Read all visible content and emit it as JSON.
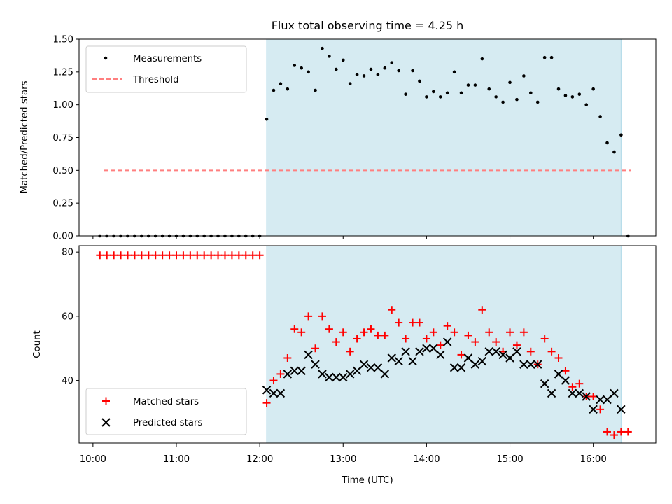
{
  "chart_data": {
    "type": "scatter",
    "title": "Flux total observing time = 4.25 h",
    "xlabel": "Time (UTC)",
    "x_ticks": [
      "10:00",
      "11:00",
      "12:00",
      "13:00",
      "14:00",
      "15:00",
      "16:00"
    ],
    "x_range": [
      "09:50",
      "16:45"
    ],
    "observing_window": [
      "12:05",
      "16:20"
    ],
    "shade_color": "#add8e6",
    "top": {
      "ylabel": "Matched/Predicted stars",
      "ylim": [
        0,
        1.5
      ],
      "y_ticks": [
        "0.00",
        "0.25",
        "0.50",
        "0.75",
        "1.00",
        "1.25",
        "1.50"
      ],
      "threshold": 0.5,
      "threshold_color": "#ff7f7f",
      "marker_color": "#000000",
      "legend": {
        "position": "upper left",
        "entries": [
          "Measurements",
          "Threshold"
        ]
      },
      "series": [
        {
          "name": "Measurements",
          "points": [
            [
              "10:05",
              0
            ],
            [
              "10:10",
              0
            ],
            [
              "10:15",
              0
            ],
            [
              "10:20",
              0
            ],
            [
              "10:25",
              0
            ],
            [
              "10:30",
              0
            ],
            [
              "10:35",
              0
            ],
            [
              "10:40",
              0
            ],
            [
              "10:45",
              0
            ],
            [
              "10:50",
              0
            ],
            [
              "10:55",
              0
            ],
            [
              "11:00",
              0
            ],
            [
              "11:05",
              0
            ],
            [
              "11:10",
              0
            ],
            [
              "11:15",
              0
            ],
            [
              "11:20",
              0
            ],
            [
              "11:25",
              0
            ],
            [
              "11:30",
              0
            ],
            [
              "11:35",
              0
            ],
            [
              "11:40",
              0
            ],
            [
              "11:45",
              0
            ],
            [
              "11:50",
              0
            ],
            [
              "11:55",
              0
            ],
            [
              "12:00",
              0
            ],
            [
              "12:05",
              0.89
            ],
            [
              "12:10",
              1.11
            ],
            [
              "12:15",
              1.16
            ],
            [
              "12:20",
              1.12
            ],
            [
              "12:25",
              1.3
            ],
            [
              "12:30",
              1.28
            ],
            [
              "12:35",
              1.25
            ],
            [
              "12:40",
              1.11
            ],
            [
              "12:45",
              1.43
            ],
            [
              "12:50",
              1.37
            ],
            [
              "12:55",
              1.27
            ],
            [
              "13:00",
              1.34
            ],
            [
              "13:05",
              1.16
            ],
            [
              "13:10",
              1.23
            ],
            [
              "13:15",
              1.22
            ],
            [
              "13:20",
              1.27
            ],
            [
              "13:25",
              1.23
            ],
            [
              "13:30",
              1.28
            ],
            [
              "13:35",
              1.32
            ],
            [
              "13:40",
              1.26
            ],
            [
              "13:45",
              1.08
            ],
            [
              "13:50",
              1.26
            ],
            [
              "13:55",
              1.18
            ],
            [
              "14:00",
              1.06
            ],
            [
              "14:05",
              1.1
            ],
            [
              "14:10",
              1.06
            ],
            [
              "14:15",
              1.09
            ],
            [
              "14:20",
              1.25
            ],
            [
              "14:25",
              1.09
            ],
            [
              "14:30",
              1.15
            ],
            [
              "14:35",
              1.15
            ],
            [
              "14:40",
              1.35
            ],
            [
              "14:45",
              1.12
            ],
            [
              "14:50",
              1.06
            ],
            [
              "14:55",
              1.02
            ],
            [
              "15:00",
              1.17
            ],
            [
              "15:05",
              1.04
            ],
            [
              "15:10",
              1.22
            ],
            [
              "15:15",
              1.09
            ],
            [
              "15:20",
              1.02
            ],
            [
              "15:25",
              1.36
            ],
            [
              "15:30",
              1.36
            ],
            [
              "15:35",
              1.12
            ],
            [
              "15:40",
              1.07
            ],
            [
              "15:45",
              1.06
            ],
            [
              "15:50",
              1.08
            ],
            [
              "15:55",
              1.0
            ],
            [
              "16:00",
              1.12
            ],
            [
              "16:05",
              0.91
            ],
            [
              "16:10",
              0.71
            ],
            [
              "16:15",
              0.64
            ],
            [
              "16:20",
              0.77
            ],
            [
              "16:25",
              0
            ]
          ]
        }
      ]
    },
    "bottom": {
      "ylabel": "Count",
      "ylim": [
        20.5,
        82
      ],
      "y_ticks": [
        "40",
        "60",
        "80"
      ],
      "legend": {
        "position": "lower left",
        "entries": [
          "Matched stars",
          "Predicted stars"
        ]
      },
      "series": [
        {
          "name": "Matched stars",
          "color": "#ff0000",
          "points": [
            [
              "10:05",
              79
            ],
            [
              "10:10",
              79
            ],
            [
              "10:15",
              79
            ],
            [
              "10:20",
              79
            ],
            [
              "10:25",
              79
            ],
            [
              "10:30",
              79
            ],
            [
              "10:35",
              79
            ],
            [
              "10:40",
              79
            ],
            [
              "10:45",
              79
            ],
            [
              "10:50",
              79
            ],
            [
              "10:55",
              79
            ],
            [
              "11:00",
              79
            ],
            [
              "11:05",
              79
            ],
            [
              "11:10",
              79
            ],
            [
              "11:15",
              79
            ],
            [
              "11:20",
              79
            ],
            [
              "11:25",
              79
            ],
            [
              "11:30",
              79
            ],
            [
              "11:35",
              79
            ],
            [
              "11:40",
              79
            ],
            [
              "11:45",
              79
            ],
            [
              "11:50",
              79
            ],
            [
              "11:55",
              79
            ],
            [
              "12:00",
              79
            ],
            [
              "12:05",
              33
            ],
            [
              "12:10",
              40
            ],
            [
              "12:15",
              42
            ],
            [
              "12:20",
              47
            ],
            [
              "12:25",
              56
            ],
            [
              "12:30",
              55
            ],
            [
              "12:35",
              60
            ],
            [
              "12:40",
              50
            ],
            [
              "12:45",
              60
            ],
            [
              "12:50",
              56
            ],
            [
              "12:55",
              52
            ],
            [
              "13:00",
              55
            ],
            [
              "13:05",
              49
            ],
            [
              "13:10",
              53
            ],
            [
              "13:15",
              55
            ],
            [
              "13:20",
              56
            ],
            [
              "13:25",
              54
            ],
            [
              "13:30",
              54
            ],
            [
              "13:35",
              62
            ],
            [
              "13:40",
              58
            ],
            [
              "13:45",
              53
            ],
            [
              "13:50",
              58
            ],
            [
              "13:55",
              58
            ],
            [
              "14:00",
              53
            ],
            [
              "14:05",
              55
            ],
            [
              "14:10",
              51
            ],
            [
              "14:15",
              57
            ],
            [
              "14:20",
              55
            ],
            [
              "14:25",
              48
            ],
            [
              "14:30",
              54
            ],
            [
              "14:35",
              52
            ],
            [
              "14:40",
              62
            ],
            [
              "14:45",
              55
            ],
            [
              "14:50",
              52
            ],
            [
              "14:55",
              49
            ],
            [
              "15:00",
              55
            ],
            [
              "15:05",
              51
            ],
            [
              "15:10",
              55
            ],
            [
              "15:15",
              49
            ],
            [
              "15:20",
              45
            ],
            [
              "15:25",
              53
            ],
            [
              "15:30",
              49
            ],
            [
              "15:35",
              47
            ],
            [
              "15:40",
              43
            ],
            [
              "15:45",
              38
            ],
            [
              "15:50",
              39
            ],
            [
              "15:55",
              35
            ],
            [
              "16:00",
              35
            ],
            [
              "16:05",
              31
            ],
            [
              "16:10",
              24
            ],
            [
              "16:15",
              23
            ],
            [
              "16:20",
              24
            ],
            [
              "16:25",
              24
            ]
          ]
        },
        {
          "name": "Predicted stars",
          "color": "#000000",
          "points": [
            [
              "12:05",
              37
            ],
            [
              "12:10",
              36
            ],
            [
              "12:15",
              36
            ],
            [
              "12:20",
              42
            ],
            [
              "12:25",
              43
            ],
            [
              "12:30",
              43
            ],
            [
              "12:35",
              48
            ],
            [
              "12:40",
              45
            ],
            [
              "12:45",
              42
            ],
            [
              "12:50",
              41
            ],
            [
              "12:55",
              41
            ],
            [
              "13:00",
              41
            ],
            [
              "13:05",
              42
            ],
            [
              "13:10",
              43
            ],
            [
              "13:15",
              45
            ],
            [
              "13:20",
              44
            ],
            [
              "13:25",
              44
            ],
            [
              "13:30",
              42
            ],
            [
              "13:35",
              47
            ],
            [
              "13:40",
              46
            ],
            [
              "13:45",
              49
            ],
            [
              "13:50",
              46
            ],
            [
              "13:55",
              49
            ],
            [
              "14:00",
              50
            ],
            [
              "14:05",
              50
            ],
            [
              "14:10",
              48
            ],
            [
              "14:15",
              52
            ],
            [
              "14:20",
              44
            ],
            [
              "14:25",
              44
            ],
            [
              "14:30",
              47
            ],
            [
              "14:35",
              45
            ],
            [
              "14:40",
              46
            ],
            [
              "14:45",
              49
            ],
            [
              "14:50",
              49
            ],
            [
              "14:55",
              48
            ],
            [
              "15:00",
              47
            ],
            [
              "15:05",
              49
            ],
            [
              "15:10",
              45
            ],
            [
              "15:15",
              45
            ],
            [
              "15:20",
              45
            ],
            [
              "15:25",
              39
            ],
            [
              "15:30",
              36
            ],
            [
              "15:35",
              42
            ],
            [
              "15:40",
              40
            ],
            [
              "15:45",
              36
            ],
            [
              "15:50",
              36
            ],
            [
              "15:55",
              35
            ],
            [
              "16:00",
              31
            ],
            [
              "16:05",
              34
            ],
            [
              "16:10",
              34
            ],
            [
              "16:15",
              36
            ],
            [
              "16:20",
              31
            ]
          ]
        }
      ]
    }
  }
}
